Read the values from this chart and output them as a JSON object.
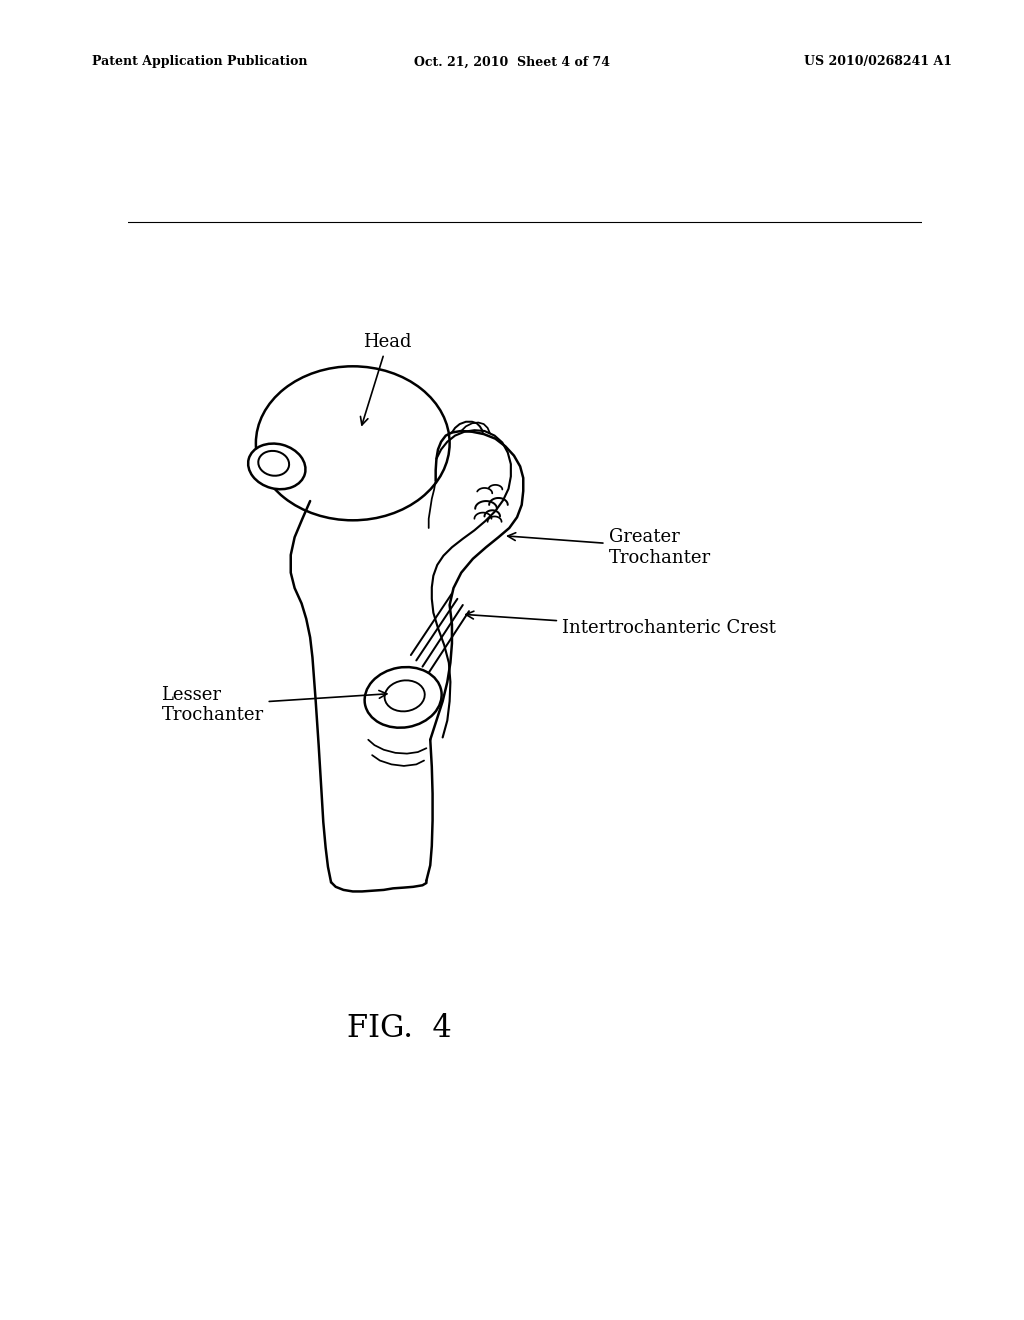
{
  "background_color": "#ffffff",
  "header_left": "Patent Application Publication",
  "header_center": "Oct. 21, 2010  Sheet 4 of 74",
  "header_right": "US 2010/0268241 A1",
  "figure_label": "FIG.  4"
}
